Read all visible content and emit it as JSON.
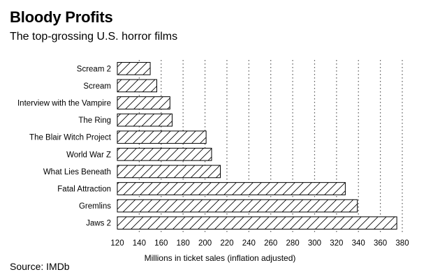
{
  "header": {
    "title": "Bloody Profits",
    "subtitle": "The top-grossing U.S. horror films"
  },
  "footer": {
    "source": "Source: IMDb"
  },
  "chart_data": {
    "type": "bar",
    "orientation": "horizontal",
    "title": "Bloody Profits",
    "subtitle": "The top-grossing U.S. horror films",
    "xlabel": "Millions in ticket sales (inflation adjusted)",
    "ylabel": "",
    "xlim": [
      120,
      380
    ],
    "xticks": [
      120,
      140,
      160,
      180,
      200,
      220,
      240,
      260,
      280,
      300,
      320,
      340,
      360,
      380
    ],
    "grid": "vertical-dotted",
    "fill_pattern": "hatched",
    "categories": [
      "Scream 2",
      "Scream",
      "Interview with the Vampire",
      "The Ring",
      "The Blair Witch Project",
      "World War Z",
      "What Lies Beneath",
      "Fatal Attraction",
      "Gremlins",
      "Jaws 2"
    ],
    "values": [
      150,
      156,
      168,
      170,
      201,
      206,
      214,
      328,
      339,
      375
    ]
  }
}
